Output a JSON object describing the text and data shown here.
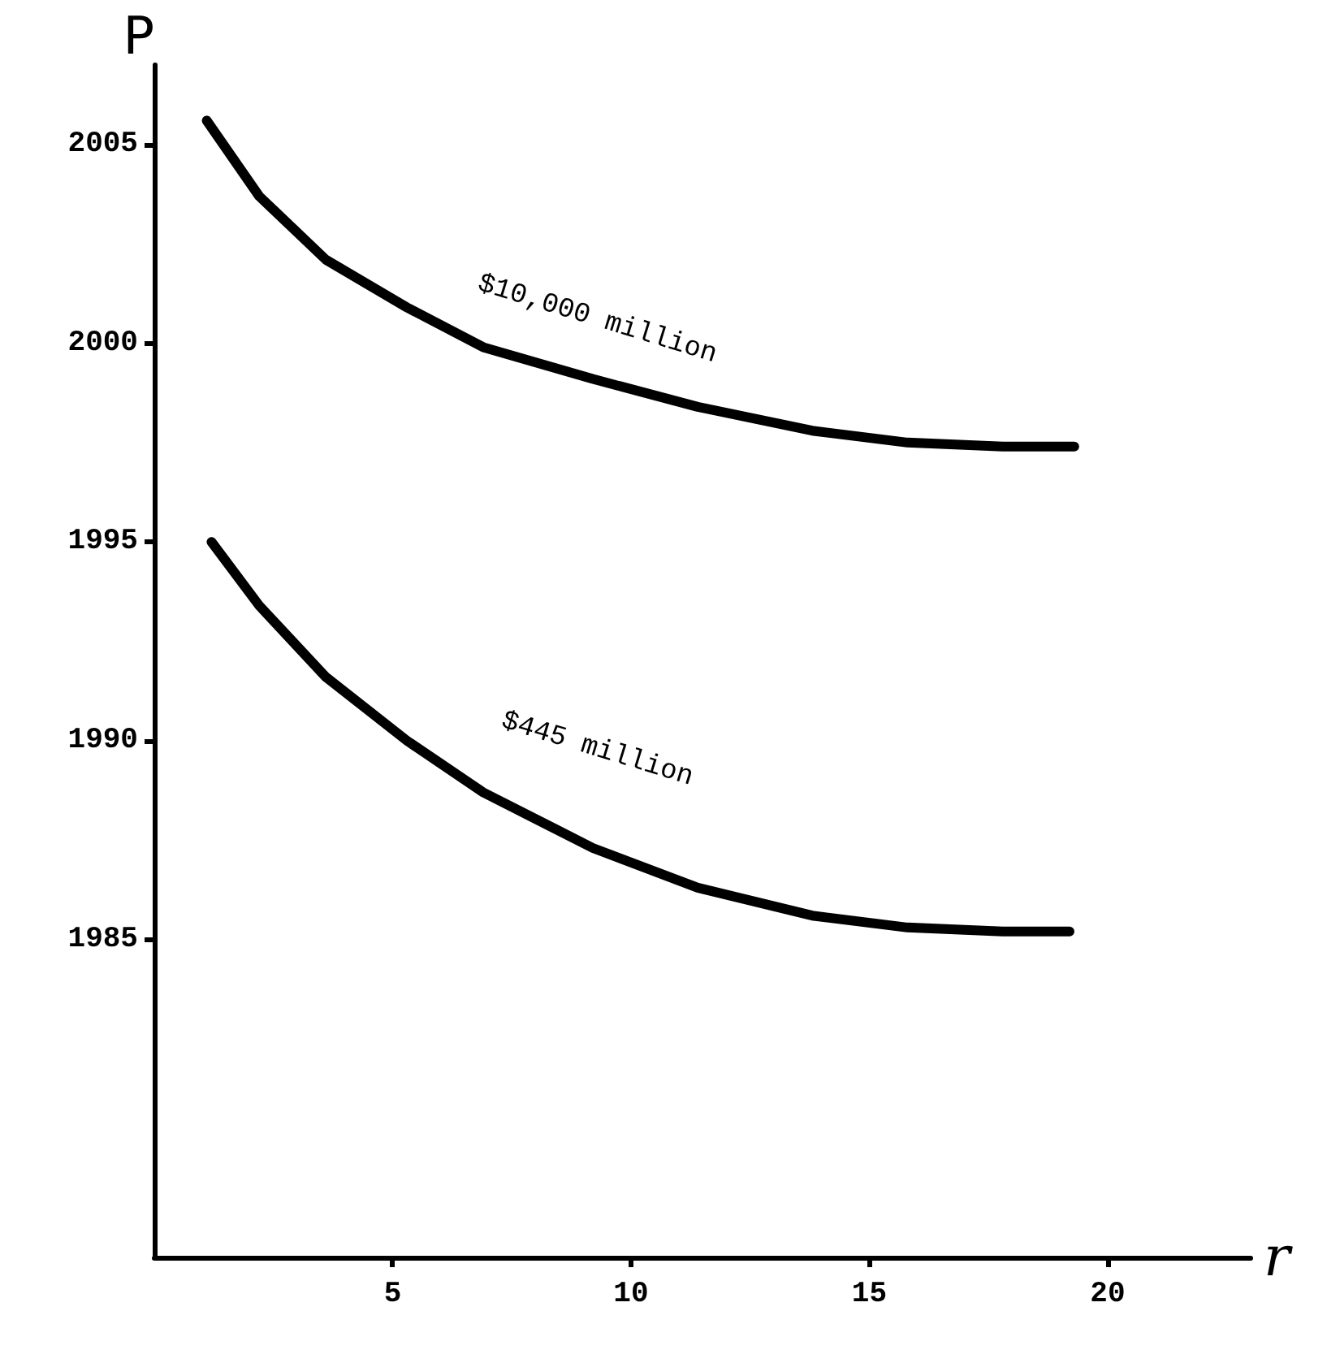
{
  "chart_data": {
    "type": "line",
    "xlabel": "r",
    "ylabel": "P",
    "xlim": [
      0,
      23
    ],
    "xticks": [
      5,
      10,
      15,
      20
    ],
    "ylim": [
      1977,
      2007
    ],
    "yticks": [
      1985,
      1990,
      1995,
      2000,
      2005
    ],
    "grid": false,
    "marker": "none",
    "line_style": "solid",
    "series": [
      {
        "name": "$10,000 million",
        "color": "#000000",
        "x": [
          1.1,
          2.2,
          3.6,
          5.3,
          6.9,
          9.2,
          11.4,
          13.8,
          15.8,
          17.8,
          19.3
        ],
        "values": [
          2005.6,
          2003.7,
          2002.1,
          2000.9,
          1999.9,
          1999.1,
          1998.4,
          1997.8,
          1997.5,
          1997.4,
          1997.4
        ]
      },
      {
        "name": "$445 million",
        "color": "#000000",
        "x": [
          1.2,
          2.2,
          3.6,
          5.3,
          6.9,
          9.2,
          11.4,
          13.8,
          15.8,
          17.8,
          19.2
        ],
        "values": [
          1995.0,
          1993.4,
          1991.6,
          1990.0,
          1988.7,
          1987.3,
          1986.3,
          1985.6,
          1985.3,
          1985.2,
          1985.2
        ]
      }
    ]
  }
}
